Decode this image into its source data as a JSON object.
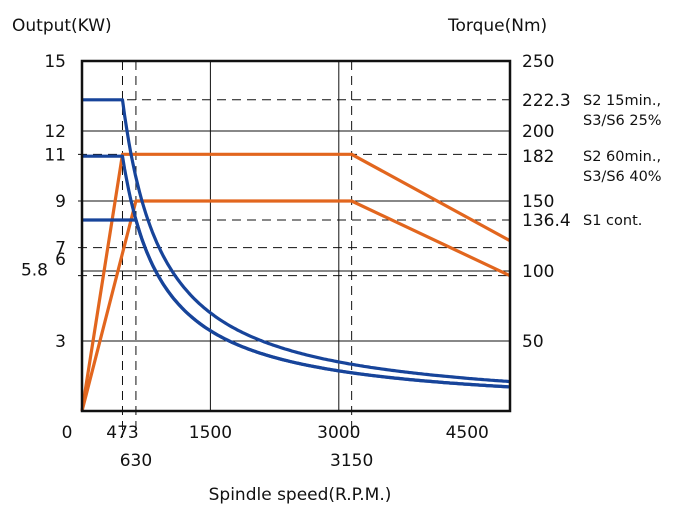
{
  "chart_data": {
    "type": "line",
    "title": "",
    "left_axis_title": "Output(KW)",
    "right_axis_title": "Torque(Nm)",
    "xlabel": "Spindle speed(R.P.M.)",
    "xlim": [
      0,
      5000
    ],
    "ylim": [
      0,
      15
    ],
    "y2lim": [
      0,
      250
    ],
    "grid": true,
    "x_ticks": [
      {
        "value": 0,
        "label": "0",
        "row": 1
      },
      {
        "value": 473,
        "label": "473",
        "row": 1
      },
      {
        "value": 630,
        "label": "630",
        "row": 2
      },
      {
        "value": 1500,
        "label": "1500",
        "row": 1
      },
      {
        "value": 3000,
        "label": "3000",
        "row": 1
      },
      {
        "value": 3150,
        "label": "3150",
        "row": 2
      },
      {
        "value": 4500,
        "label": "4500",
        "row": 1
      }
    ],
    "y_ticks_left": [
      {
        "value": 15,
        "label": "15"
      },
      {
        "value": 12,
        "label": "12"
      },
      {
        "value": 11,
        "label": "11"
      },
      {
        "value": 9,
        "label": "9"
      },
      {
        "value": 7,
        "label": "7"
      },
      {
        "value": 6,
        "label": "6"
      },
      {
        "value": 5.8,
        "label": "5.8"
      },
      {
        "value": 3,
        "label": "3"
      }
    ],
    "y_ticks_right": [
      {
        "value": 250,
        "label": "250"
      },
      {
        "value": 222.3,
        "label": "222.3"
      },
      {
        "value": 200,
        "label": "200"
      },
      {
        "value": 182,
        "label": "182"
      },
      {
        "value": 150,
        "label": "150"
      },
      {
        "value": 136.4,
        "label": "136.4"
      },
      {
        "value": 100,
        "label": "100"
      },
      {
        "value": 50,
        "label": "50"
      }
    ],
    "annotations": [
      {
        "lines": [
          "S2 15min.,",
          "S3/S6 25%"
        ],
        "y2": 222.3
      },
      {
        "lines": [
          "S2 60min.,",
          "S3/S6 40%"
        ],
        "y2": 182
      },
      {
        "lines": [
          "S1 cont."
        ],
        "y2": 136.4
      }
    ],
    "series": [
      {
        "axis": "left",
        "color": "#e2661e",
        "x": [
          0,
          473,
          3150,
          5000
        ],
        "y": [
          0,
          11,
          11,
          7.3
        ]
      },
      {
        "axis": "left",
        "color": "#e2661e",
        "x": [
          0,
          630,
          3150,
          5000
        ],
        "y": [
          0,
          9,
          9,
          5.8
        ]
      },
      {
        "axis": "right",
        "color": "#17449a",
        "curve": "constant-power",
        "x": [
          0,
          473,
          5000
        ],
        "y": [
          222.3,
          222.3,
          21
        ],
        "power_kw": 11
      },
      {
        "axis": "right",
        "color": "#17449a",
        "curve": "constant-power",
        "x": [
          0,
          473,
          5000
        ],
        "y": [
          182,
          182,
          21
        ],
        "power_kw": 9
      },
      {
        "axis": "right",
        "color": "#17449a",
        "curve": "constant-power",
        "x": [
          0,
          630,
          5000
        ],
        "y": [
          136.4,
          136.4,
          17.2
        ],
        "power_kw": 9
      }
    ],
    "reference_lines_y_left": [
      11,
      9,
      7,
      5.8
    ],
    "reference_lines_y_right": [
      222.3,
      136.4
    ],
    "reference_lines_x": [
      473,
      630,
      3150
    ],
    "grid_y_left": [
      12,
      9,
      6,
      3
    ],
    "grid_x": [
      1500,
      3000
    ]
  }
}
